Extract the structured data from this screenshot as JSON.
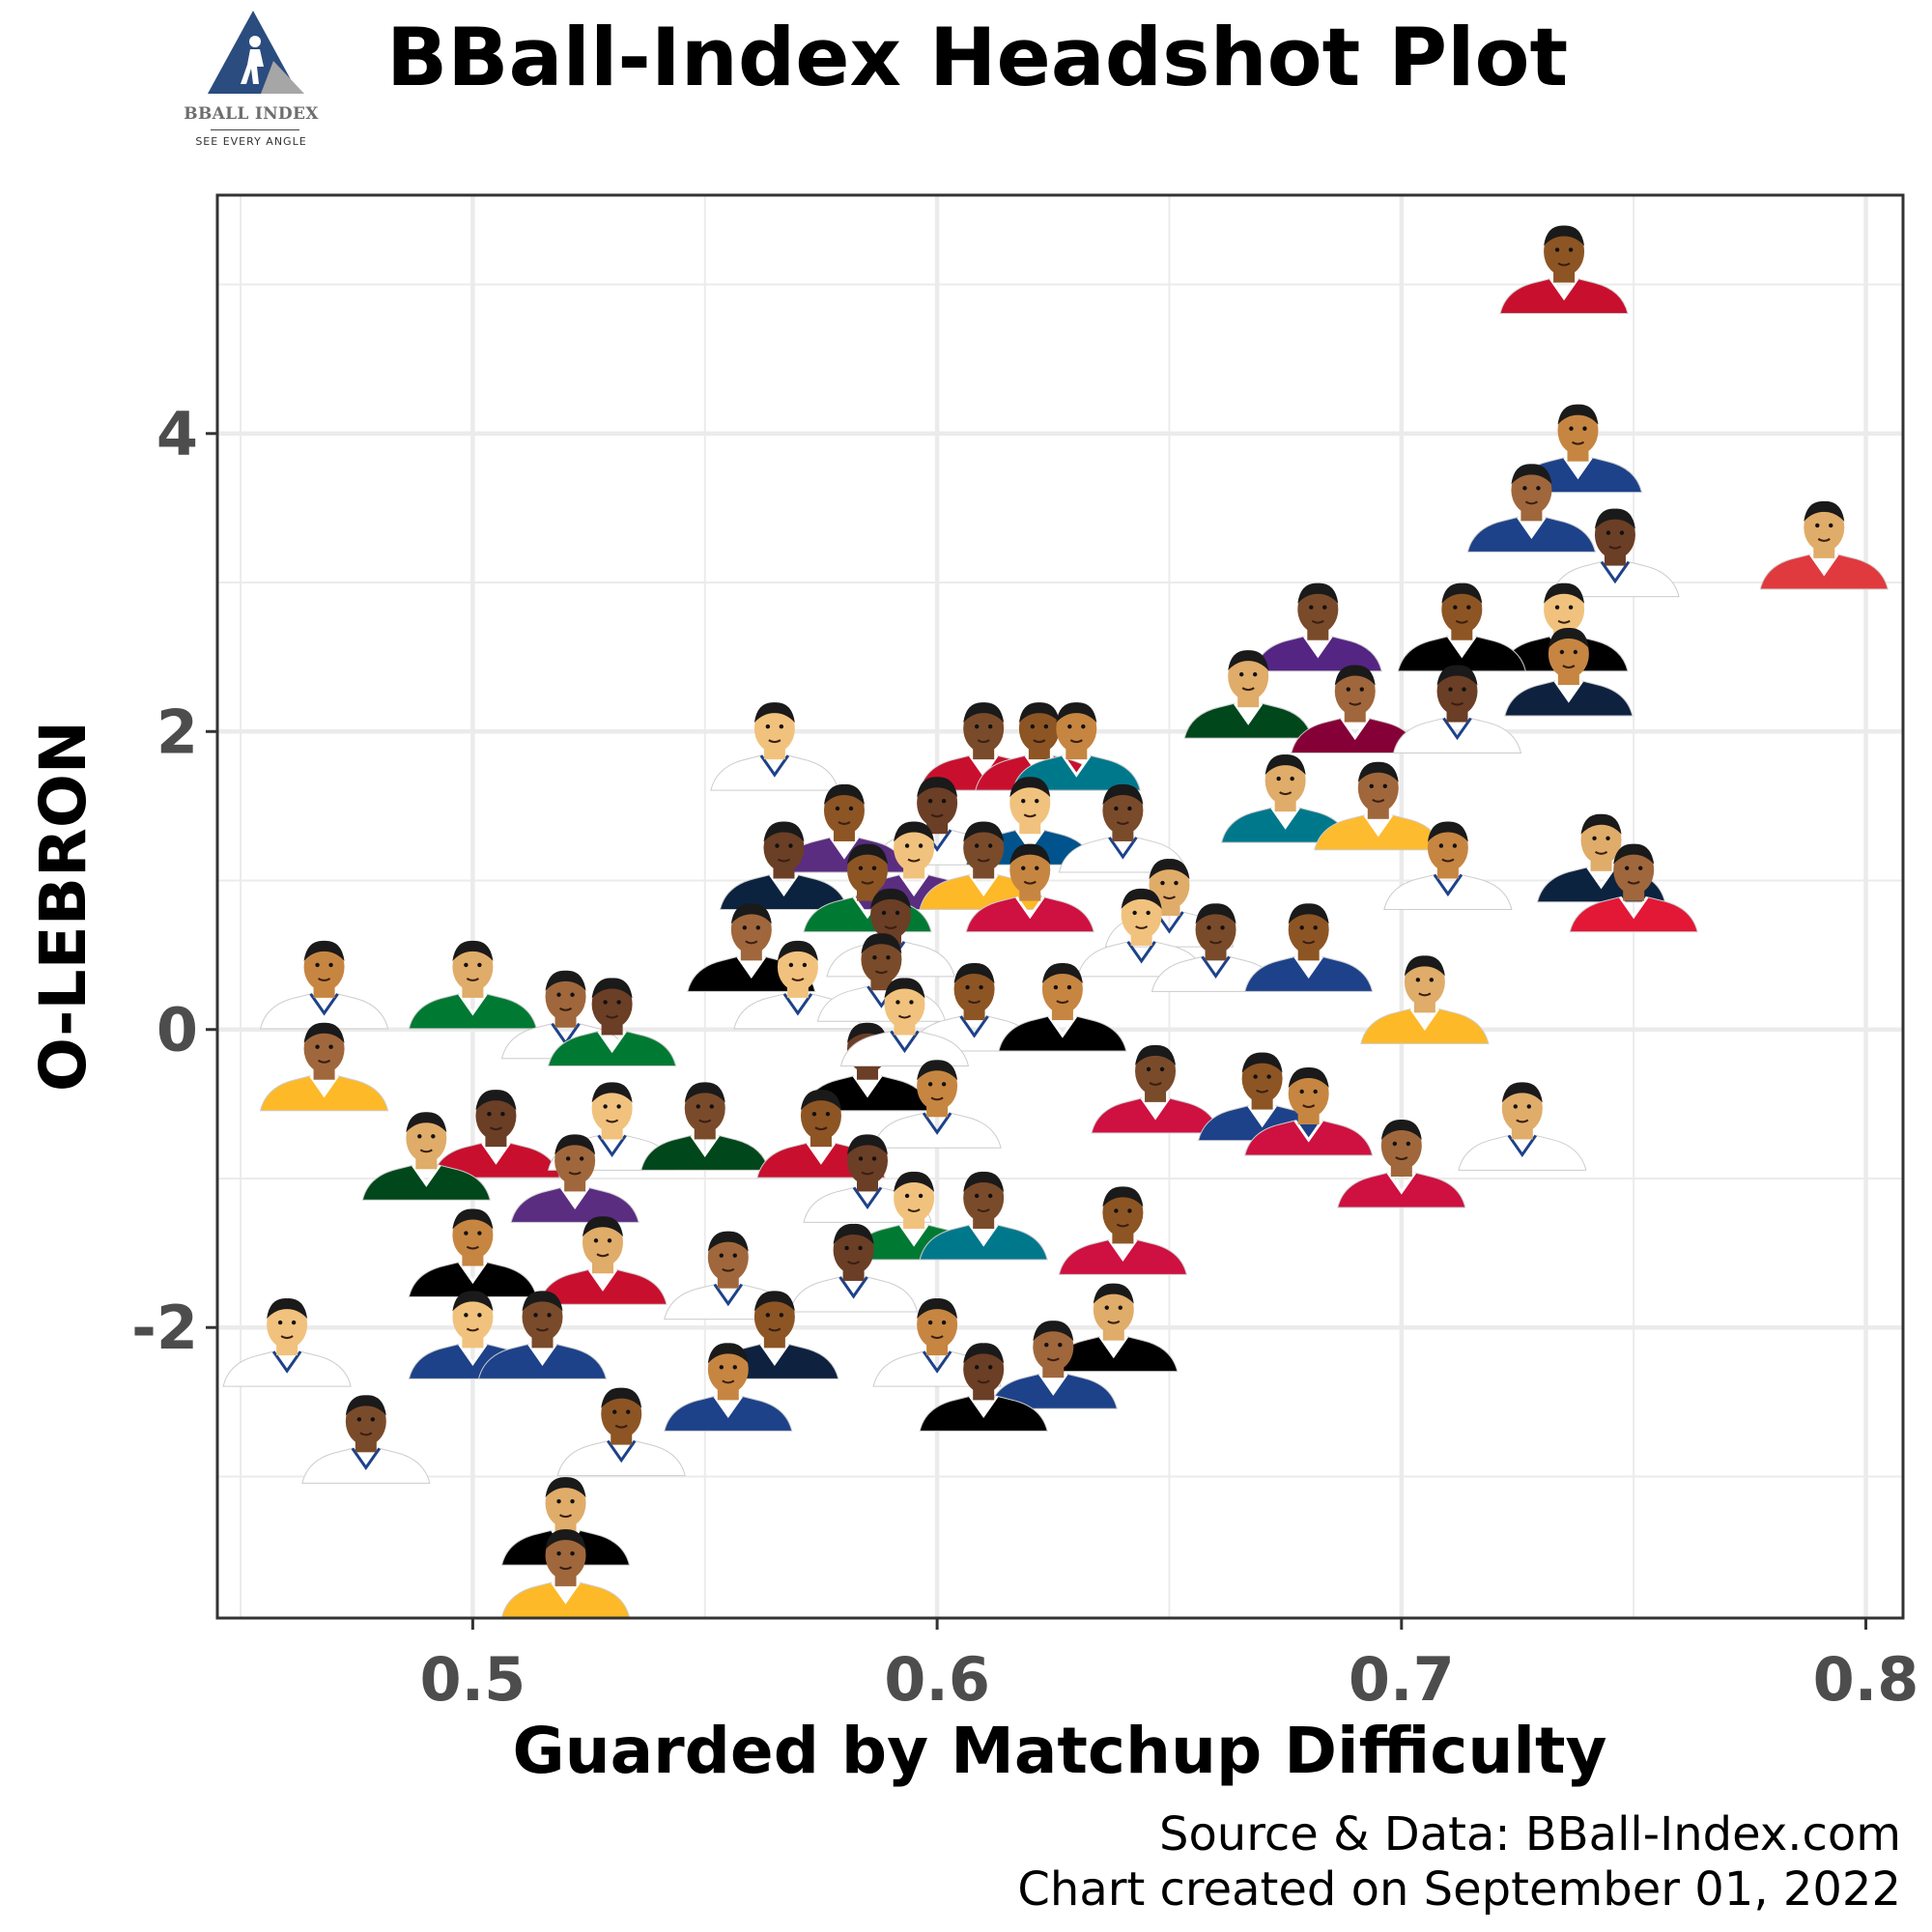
{
  "header": {
    "title": "BBall-Index Headshot Plot",
    "logo_text": "BBALL INDEX",
    "logo_tagline": "SEE EVERY ANGLE"
  },
  "colors": {
    "logo_blue": "#2b4c7e",
    "logo_gray": "#a6a6a6",
    "grid": "#ebebeb",
    "panel_border": "#333333",
    "tick_text": "#4d4d4d"
  },
  "icons": {
    "point_marker": "player-headshot-icon",
    "logo": "bball-index-logo-icon"
  },
  "chart_data": {
    "type": "scatter",
    "marker": "player headshot",
    "xlabel": "Guarded by Matchup Difficulty",
    "ylabel": "O-LEBRON",
    "xlim": [
      0.445,
      0.808
    ],
    "ylim": [
      -3.95,
      5.6
    ],
    "xticks": [
      0.5,
      0.6,
      0.7,
      0.8
    ],
    "xtick_labels": [
      "0.5",
      "0.6",
      "0.7",
      "0.8"
    ],
    "yticks": [
      -2,
      0,
      2,
      4
    ],
    "ytick_labels": [
      "-2",
      "0",
      "2",
      "4"
    ],
    "grid": true,
    "caption": [
      "Source & Data: BBall-Index.com",
      "Chart created on September 01, 2022"
    ],
    "points": [
      {
        "x": 0.735,
        "y": 5.0,
        "jersey": "#c8102e"
      },
      {
        "x": 0.738,
        "y": 3.8,
        "jersey": "#1d428a"
      },
      {
        "x": 0.791,
        "y": 3.15,
        "jersey": "#e03a3e"
      },
      {
        "x": 0.728,
        "y": 3.4,
        "jersey": "#1d428a"
      },
      {
        "x": 0.746,
        "y": 3.1,
        "jersey": "#ffffff"
      },
      {
        "x": 0.735,
        "y": 2.6,
        "jersey": "#000000"
      },
      {
        "x": 0.682,
        "y": 2.6,
        "jersey": "#552583"
      },
      {
        "x": 0.713,
        "y": 2.6,
        "jersey": "#000000"
      },
      {
        "x": 0.736,
        "y": 2.3,
        "jersey": "#0e2240"
      },
      {
        "x": 0.667,
        "y": 2.15,
        "jersey": "#00471b"
      },
      {
        "x": 0.69,
        "y": 2.05,
        "jersey": "#860038"
      },
      {
        "x": 0.712,
        "y": 2.05,
        "jersey": "#ffffff"
      },
      {
        "x": 0.565,
        "y": 1.8,
        "jersey": "#ffffff"
      },
      {
        "x": 0.61,
        "y": 1.8,
        "jersey": "#c8102e"
      },
      {
        "x": 0.622,
        "y": 1.8,
        "jersey": "#c8102e"
      },
      {
        "x": 0.63,
        "y": 1.8,
        "jersey": "#00788c"
      },
      {
        "x": 0.675,
        "y": 1.45,
        "jersey": "#00788c"
      },
      {
        "x": 0.695,
        "y": 1.4,
        "jersey": "#fdbb30"
      },
      {
        "x": 0.6,
        "y": 1.3,
        "jersey": "#ffffff"
      },
      {
        "x": 0.62,
        "y": 1.3,
        "jersey": "#00538c"
      },
      {
        "x": 0.64,
        "y": 1.25,
        "jersey": "#ffffff"
      },
      {
        "x": 0.58,
        "y": 1.25,
        "jersey": "#5a2d81"
      },
      {
        "x": 0.71,
        "y": 1.0,
        "jersey": "#ffffff"
      },
      {
        "x": 0.743,
        "y": 1.05,
        "jersey": "#0c2340"
      },
      {
        "x": 0.75,
        "y": 0.85,
        "jersey": "#e31837"
      },
      {
        "x": 0.567,
        "y": 1.0,
        "jersey": "#0c2340"
      },
      {
        "x": 0.595,
        "y": 1.0,
        "jersey": "#5a2d81"
      },
      {
        "x": 0.61,
        "y": 1.0,
        "jersey": "#fdb927"
      },
      {
        "x": 0.585,
        "y": 0.85,
        "jersey": "#007a33"
      },
      {
        "x": 0.62,
        "y": 0.85,
        "jersey": "#ce1141"
      },
      {
        "x": 0.65,
        "y": 0.75,
        "jersey": "#ffffff"
      },
      {
        "x": 0.56,
        "y": 0.45,
        "jersey": "#000000"
      },
      {
        "x": 0.59,
        "y": 0.55,
        "jersey": "#ffffff"
      },
      {
        "x": 0.644,
        "y": 0.55,
        "jersey": "#ffffff"
      },
      {
        "x": 0.66,
        "y": 0.45,
        "jersey": "#ffffff"
      },
      {
        "x": 0.68,
        "y": 0.45,
        "jersey": "#1d428a"
      },
      {
        "x": 0.468,
        "y": 0.2,
        "jersey": "#ffffff"
      },
      {
        "x": 0.5,
        "y": 0.2,
        "jersey": "#007a33"
      },
      {
        "x": 0.52,
        "y": 0.0,
        "jersey": "#ffffff"
      },
      {
        "x": 0.53,
        "y": -0.05,
        "jersey": "#007a33"
      },
      {
        "x": 0.57,
        "y": 0.2,
        "jersey": "#ffffff"
      },
      {
        "x": 0.588,
        "y": 0.25,
        "jersey": "#ffffff"
      },
      {
        "x": 0.608,
        "y": 0.05,
        "jersey": "#ffffff"
      },
      {
        "x": 0.627,
        "y": 0.05,
        "jersey": "#000000"
      },
      {
        "x": 0.705,
        "y": 0.1,
        "jersey": "#fdb927"
      },
      {
        "x": 0.468,
        "y": -0.35,
        "jersey": "#fdb927"
      },
      {
        "x": 0.585,
        "y": -0.35,
        "jersey": "#000000"
      },
      {
        "x": 0.593,
        "y": -0.05,
        "jersey": "#ffffff"
      },
      {
        "x": 0.647,
        "y": -0.5,
        "jersey": "#ce1141"
      },
      {
        "x": 0.67,
        "y": -0.55,
        "jersey": "#1d428a"
      },
      {
        "x": 0.68,
        "y": -0.65,
        "jersey": "#ce1141"
      },
      {
        "x": 0.726,
        "y": -0.75,
        "jersey": "#ffffff"
      },
      {
        "x": 0.7,
        "y": -1.0,
        "jersey": "#ce1141"
      },
      {
        "x": 0.505,
        "y": -0.8,
        "jersey": "#c8102e"
      },
      {
        "x": 0.53,
        "y": -0.75,
        "jersey": "#ffffff"
      },
      {
        "x": 0.55,
        "y": -0.75,
        "jersey": "#00471b"
      },
      {
        "x": 0.575,
        "y": -0.8,
        "jersey": "#c8102e"
      },
      {
        "x": 0.6,
        "y": -0.6,
        "jersey": "#ffffff"
      },
      {
        "x": 0.49,
        "y": -0.95,
        "jersey": "#00471b"
      },
      {
        "x": 0.522,
        "y": -1.1,
        "jersey": "#5a2d81"
      },
      {
        "x": 0.585,
        "y": -1.1,
        "jersey": "#ffffff"
      },
      {
        "x": 0.595,
        "y": -1.35,
        "jersey": "#007a33"
      },
      {
        "x": 0.61,
        "y": -1.35,
        "jersey": "#00788c"
      },
      {
        "x": 0.64,
        "y": -1.45,
        "jersey": "#ce1141"
      },
      {
        "x": 0.5,
        "y": -1.6,
        "jersey": "#000000"
      },
      {
        "x": 0.528,
        "y": -1.65,
        "jersey": "#c8102e"
      },
      {
        "x": 0.555,
        "y": -1.75,
        "jersey": "#ffffff"
      },
      {
        "x": 0.582,
        "y": -1.7,
        "jersey": "#ffffff"
      },
      {
        "x": 0.5,
        "y": -2.15,
        "jersey": "#1d428a"
      },
      {
        "x": 0.515,
        "y": -2.15,
        "jersey": "#1d428a"
      },
      {
        "x": 0.565,
        "y": -2.15,
        "jersey": "#0e2240"
      },
      {
        "x": 0.6,
        "y": -2.2,
        "jersey": "#ffffff"
      },
      {
        "x": 0.638,
        "y": -2.1,
        "jersey": "#000000"
      },
      {
        "x": 0.625,
        "y": -2.35,
        "jersey": "#1d428a"
      },
      {
        "x": 0.61,
        "y": -2.5,
        "jersey": "#000000"
      },
      {
        "x": 0.46,
        "y": -2.2,
        "jersey": "#ffffff"
      },
      {
        "x": 0.477,
        "y": -2.85,
        "jersey": "#ffffff"
      },
      {
        "x": 0.532,
        "y": -2.8,
        "jersey": "#ffffff"
      },
      {
        "x": 0.555,
        "y": -2.5,
        "jersey": "#1d428a"
      },
      {
        "x": 0.52,
        "y": -3.4,
        "jersey": "#000000"
      },
      {
        "x": 0.52,
        "y": -3.75,
        "jersey": "#fdb927"
      }
    ]
  }
}
